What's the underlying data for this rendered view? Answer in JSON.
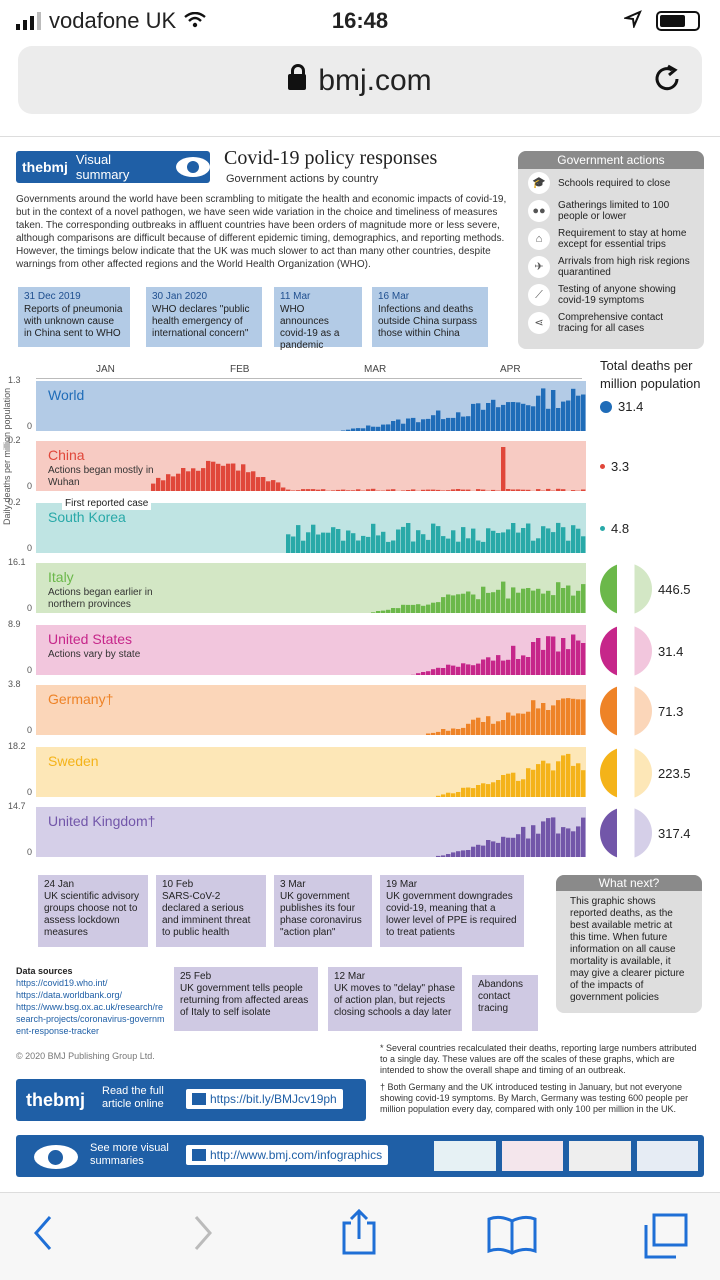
{
  "status": {
    "carrier": "vodafone UK",
    "time": "16:48"
  },
  "browser": {
    "url": "bmj.com"
  },
  "header": {
    "badge_brand": "thebmj",
    "badge_label": "Visual summary",
    "title": "Covid-19 policy responses",
    "subtitle": "Government actions by country",
    "intro": "Governments around the world have been scrambling to mitigate the health and economic impacts of covid-19, but in the context of a novel pathogen, we have seen wide variation in the choice and timeliness of measures taken. The corresponding outbreaks in affluent countries have been orders of magnitude more or less severe, although comparisons are difficult because of different epidemic timing, demographics, and reporting methods. However, the timings below indicate that the UK was much slower to act than many other countries, despite warnings from other affected regions and the World Health Organization (WHO)."
  },
  "gov_actions": {
    "title": "Government actions",
    "items": [
      {
        "label": "Schools required to close",
        "icon": "mortarboard-icon"
      },
      {
        "label": "Gatherings limited to 100 people or lower",
        "icon": "people-icon"
      },
      {
        "label": "Requirement to stay at home except for essential trips",
        "icon": "house-icon"
      },
      {
        "label": "Arrivals from high risk regions quarantined",
        "icon": "plane-icon"
      },
      {
        "label": "Testing of anyone showing covid-19 symptoms",
        "icon": "test-tube-icon"
      },
      {
        "label": "Comprehensive contact tracing for all cases",
        "icon": "share-icon"
      }
    ]
  },
  "top_events": [
    {
      "date": "31 Dec 2019",
      "text": "Reports of pneumonia with unknown cause in China sent to WHO"
    },
    {
      "date": "30 Jan 2020",
      "text": "WHO declares \"public health emergency of international concern\""
    },
    {
      "date": "11 Mar",
      "text": "WHO announces covid-19 as a pandemic"
    },
    {
      "date": "16 Mar",
      "text": "Infections and deaths outside China surpass those within China"
    }
  ],
  "months": [
    "JAN",
    "FEB",
    "MAR",
    "APR"
  ],
  "totals_title": "Total deaths per million population",
  "y_axis_label": "Daily deaths per million population",
  "first_case_label": "First reported case",
  "countries": [
    {
      "name": "World",
      "sub": "",
      "ymax": "1.3",
      "ymin": "0",
      "total": "31.4",
      "bg": "#b3cbe6",
      "fg": "#1f6cb8"
    },
    {
      "name": "China",
      "sub": "Actions began mostly in Wuhan",
      "ymax": "0.2",
      "ymin": "0",
      "total": "3.3",
      "bg": "#f7cbc3",
      "fg": "#e0473a"
    },
    {
      "name": "South Korea",
      "sub": "",
      "ymax": "0.2",
      "ymin": "0",
      "total": "4.8",
      "bg": "#bfe4e3",
      "fg": "#28a9a8"
    },
    {
      "name": "Italy",
      "sub": "Actions began earlier in northern provinces",
      "ymax": "16.1",
      "ymin": "0",
      "total": "446.5",
      "bg": "#d3e7c5",
      "fg": "#6bb84a"
    },
    {
      "name": "United States",
      "sub": "Actions vary by state",
      "ymax": "8.9",
      "ymin": "0",
      "total": "31.4",
      "bg": "#f2c6dd",
      "fg": "#c6268a"
    },
    {
      "name": "Germany†",
      "sub": "",
      "ymax": "3.8",
      "ymin": "0",
      "total": "71.3",
      "bg": "#fbd6b9",
      "fg": "#ee8327"
    },
    {
      "name": "Sweden",
      "sub": "",
      "ymax": "18.2",
      "ymin": "0",
      "total": "223.5",
      "bg": "#fde7b7",
      "fg": "#f4b319"
    },
    {
      "name": "United Kingdom†",
      "sub": "",
      "ymax": "14.7",
      "ymin": "0",
      "total": "317.4",
      "bg": "#d5cfe8",
      "fg": "#7256a9"
    }
  ],
  "bottom_events": [
    {
      "date": "24 Jan",
      "text": "UK scientific advisory groups choose not to assess lockdown measures"
    },
    {
      "date": "10 Feb",
      "text": "SARS-CoV-2 declared a serious and imminent threat to public health"
    },
    {
      "date": "3 Mar",
      "text": "UK government publishes its four phase coronavirus \"action plan\""
    },
    {
      "date": "19 Mar",
      "text": "UK government downgrades covid-19, meaning that a lower level of PPE is required to treat patients"
    },
    {
      "date": "25 Feb",
      "text": "UK government tells people returning from affected areas of Italy to self isolate"
    },
    {
      "date": "12 Mar",
      "text": "UK moves to \"delay\" phase of action plan, but rejects closing schools a day later"
    },
    {
      "date": "",
      "text": "Abandons contact tracing"
    }
  ],
  "whats_next": {
    "title": "What next?",
    "text": "This graphic shows reported deaths, as the best available metric at this time. When future information on all cause mortality is available, it may give a clearer picture of the impacts of government policies"
  },
  "sources": {
    "title": "Data sources",
    "items": [
      "https://covid19.who.int/",
      "https://data.worldbank.org/",
      "https://www.bsg.ox.ac.uk/research/research-projects/coronavirus-government-response-tracker"
    ]
  },
  "copyright": "© 2020 BMJ Publishing Group Ltd.",
  "notes": [
    "* Several countries recalculated their deaths, reporting large numbers attributed to a single day. These values are off the scales of these graphs, which are intended to show the overall shape and timing of an outbreak.",
    "† Both Germany and the UK introduced testing in January, but not everyone showing covid-19 symptoms. By March, Germany was testing 600 people per million population every day, compared with only 100 per million in the UK."
  ],
  "footer": {
    "brand": "thebmj",
    "read_label": "Read the full article online",
    "article_url": "https://bit.ly/BMJcv19ph",
    "more_label": "See more visual summaries",
    "more_url": "http://www.bmj.com/infographics"
  }
}
